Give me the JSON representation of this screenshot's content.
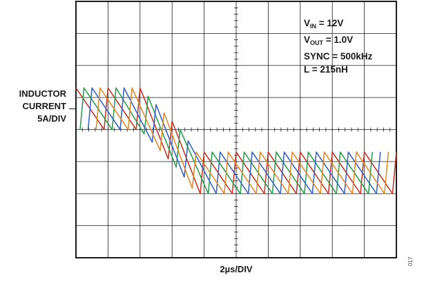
{
  "chart_data": {
    "type": "line",
    "title": "",
    "ylabel": {
      "line1": "INDUCTOR",
      "line2": "CURRENT",
      "line3": "5A/DIV"
    },
    "xlabel": "2µs/DIV",
    "figure_id": "017",
    "annotations": {
      "vin": {
        "prefix": "V",
        "sub": "IN",
        "value": " = 12V"
      },
      "vout": {
        "prefix": "V",
        "sub": "OUT",
        "value": " = 1.0V"
      },
      "sync": "SYNC = 500kHz",
      "inductance": "L = 215nH"
    },
    "x_divisions": 10,
    "y_divisions": 8,
    "x_unit_per_div_us": 2,
    "y_unit_per_div_a": 5,
    "xlim_us": [
      0,
      20
    ],
    "ylim_div": [
      -4,
      4
    ],
    "grid": true,
    "switching_frequency_khz": 500,
    "series": [
      {
        "color": "#c0392b",
        "phase_offset_us": 0.0
      },
      {
        "color": "#2e9e4f",
        "phase_offset_us": 0.5
      },
      {
        "color": "#3a64c4",
        "phase_offset_us": 1.0
      },
      {
        "color": "#e08a2e",
        "phase_offset_us": 1.5
      }
    ],
    "envelope_divs": [
      [
        0.0,
        0.65
      ],
      [
        4.0,
        0.65
      ],
      [
        6.5,
        -0.65
      ],
      [
        7.5,
        -1.35
      ],
      [
        10.0,
        -1.35
      ]
    ],
    "ripple_pp_div": 1.3
  }
}
